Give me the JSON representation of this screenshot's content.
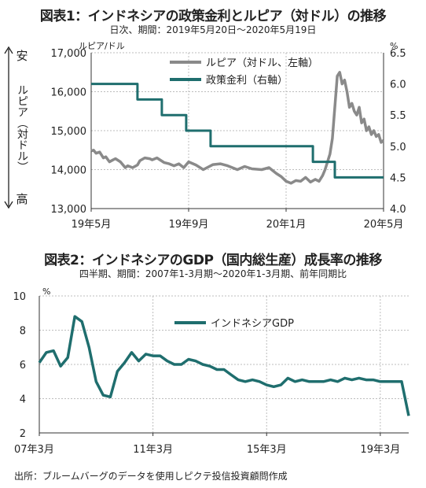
{
  "chart_data": [
    {
      "type": "line",
      "title": "図表1：インドネシアの政策金利とルピア（対ドル）の推移",
      "subtitle": "日次、期間：2019年5月20日～2020年5月19日",
      "left_unit": "ルピア/ドル",
      "right_unit": "%",
      "left_axis_side_label": {
        "top": "安",
        "middle": "ルピア（対ドル）",
        "bottom": "高"
      },
      "x_tick_labels": [
        "19年5月",
        "19年9月",
        "20年1月",
        "20年5月"
      ],
      "x_ticks_month_index": [
        0,
        4,
        8,
        12
      ],
      "x_range_months": [
        0,
        12
      ],
      "ylim_left": [
        13000,
        17000
      ],
      "yticks_left": [
        "13,000",
        "14,000",
        "15,000",
        "16,000",
        "17,000"
      ],
      "ylim_right": [
        4.0,
        6.5
      ],
      "yticks_right": [
        "4.0",
        "4.5",
        "5.0",
        "5.5",
        "6.0",
        "6.5"
      ],
      "legend": [
        "ルピア（対ドル、左軸）",
        "政策金利（右軸）"
      ],
      "series": [
        {
          "name": "ルピア（対ドル、左軸）",
          "axis": "left",
          "color": "#8a8a8a",
          "x_month": [
            0,
            0.1,
            0.2,
            0.35,
            0.5,
            0.6,
            0.75,
            0.9,
            1.0,
            1.2,
            1.4,
            1.5,
            1.7,
            1.9,
            2.0,
            2.2,
            2.4,
            2.5,
            2.7,
            2.9,
            3.0,
            3.2,
            3.4,
            3.6,
            3.8,
            4.0,
            4.3,
            4.6,
            5.0,
            5.3,
            5.6,
            6.0,
            6.3,
            6.6,
            7.0,
            7.3,
            7.6,
            7.8,
            8.0,
            8.2,
            8.4,
            8.6,
            8.8,
            9.0,
            9.2,
            9.35,
            9.5,
            9.6,
            9.7,
            9.8,
            9.9,
            10.0,
            10.1,
            10.2,
            10.3,
            10.4,
            10.5,
            10.6,
            10.7,
            10.8,
            10.9,
            11.0,
            11.1,
            11.2,
            11.3,
            11.4,
            11.5,
            11.6,
            11.7,
            11.8,
            11.9,
            12.0
          ],
          "values": [
            14480,
            14500,
            14420,
            14450,
            14300,
            14330,
            14200,
            14250,
            14280,
            14200,
            14050,
            14100,
            14050,
            14120,
            14230,
            14300,
            14280,
            14250,
            14300,
            14220,
            14180,
            14150,
            14100,
            14150,
            14050,
            14200,
            14120,
            14000,
            14130,
            14150,
            14100,
            14000,
            14080,
            14020,
            14000,
            14050,
            13900,
            13820,
            13700,
            13650,
            13720,
            13700,
            13800,
            13680,
            13750,
            13700,
            13850,
            14000,
            14200,
            14400,
            14800,
            15600,
            16400,
            16500,
            16200,
            16300,
            16000,
            15600,
            15700,
            15500,
            15400,
            15600,
            15200,
            15300,
            15000,
            15100,
            14900,
            15000,
            14850,
            14900,
            14700,
            14750
          ]
        },
        {
          "name": "政策金利（右軸）",
          "axis": "right",
          "color": "#1f6e6e",
          "x_month": [
            0,
            1.9,
            1.9,
            2.9,
            2.9,
            3.9,
            3.9,
            4.9,
            4.9,
            9.1,
            9.1,
            10.0,
            10.0,
            12.0
          ],
          "values": [
            6.0,
            6.0,
            5.75,
            5.75,
            5.5,
            5.5,
            5.25,
            5.25,
            5.0,
            5.0,
            4.75,
            4.75,
            4.5,
            4.5
          ]
        }
      ]
    },
    {
      "type": "line",
      "title": "図表2：インドネシアのGDP（国内総生産）成長率の推移",
      "subtitle": "四半期、期間：2007年1-3月期～2020年1-3月期、前年同期比",
      "y_unit": "%",
      "ylim": [
        2,
        10
      ],
      "yticks": [
        "2",
        "4",
        "6",
        "8",
        "10"
      ],
      "x_tick_labels": [
        "07年3月",
        "11年3月",
        "15年3月",
        "19年3月"
      ],
      "x_ticks_quarter_index": [
        0,
        16,
        32,
        48
      ],
      "x_range_quarters": [
        0,
        52
      ],
      "legend": [
        "インドネシアGDP"
      ],
      "series": [
        {
          "name": "インドネシアGDP",
          "color": "#1f6e6e",
          "values": [
            6.1,
            6.7,
            6.8,
            5.9,
            6.4,
            8.8,
            8.5,
            7.0,
            5.0,
            4.2,
            4.1,
            5.6,
            6.1,
            6.7,
            6.2,
            6.6,
            6.5,
            6.5,
            6.2,
            6.0,
            6.0,
            6.3,
            6.2,
            6.0,
            5.9,
            5.7,
            5.7,
            5.4,
            5.1,
            5.0,
            5.1,
            5.0,
            4.8,
            4.7,
            4.8,
            5.2,
            5.0,
            5.1,
            5.0,
            5.0,
            5.0,
            5.1,
            5.0,
            5.2,
            5.1,
            5.2,
            5.1,
            5.1,
            5.0,
            5.0,
            5.0,
            5.0,
            3.0
          ]
        }
      ]
    }
  ],
  "source": "出所：ブルームバーグのデータを使用しピクテ投信投資顧問作成"
}
